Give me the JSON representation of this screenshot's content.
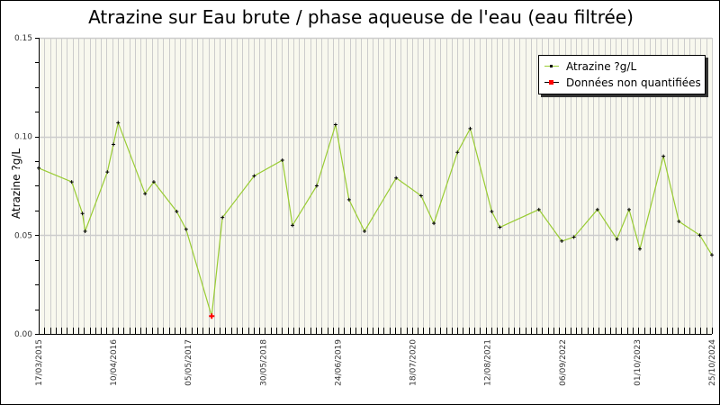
{
  "chart_data": {
    "type": "line",
    "title": "Atrazine sur Eau brute / phase aqueuse de l'eau (eau filtrée)",
    "xlabel": "",
    "ylabel": "Atrazine ?g/L",
    "ylim": [
      0,
      0.15
    ],
    "yticks": [
      "0.00",
      "0.05",
      "0.10",
      "0.15"
    ],
    "xtick_labels": [
      "17/03/2015",
      "10/04/2016",
      "05/05/2017",
      "30/05/2018",
      "24/06/2019",
      "18/07/2020",
      "12/08/2021",
      "06/09/2022",
      "01/10/2023",
      "25/10/2024"
    ],
    "grid": {
      "vertical": true,
      "horizontal": true
    },
    "legend_position": "top-right",
    "legend": [
      {
        "label": "Atrazine ?g/L",
        "line_color": "#99cc33",
        "marker_color": "#000000"
      },
      {
        "label": "Données non quantifiées",
        "line_color": "#000000",
        "marker_color": "#ff0000"
      }
    ],
    "series": [
      {
        "name": "Atrazine ?g/L",
        "color": "#99cc33",
        "points": [
          {
            "x": 0.0,
            "y": 0.084,
            "nq": false
          },
          {
            "x": 0.049,
            "y": 0.077,
            "nq": false
          },
          {
            "x": 0.065,
            "y": 0.061,
            "nq": false
          },
          {
            "x": 0.069,
            "y": 0.052,
            "nq": false
          },
          {
            "x": 0.102,
            "y": 0.082,
            "nq": false
          },
          {
            "x": 0.111,
            "y": 0.096,
            "nq": false
          },
          {
            "x": 0.118,
            "y": 0.107,
            "nq": false
          },
          {
            "x": 0.158,
            "y": 0.071,
            "nq": false
          },
          {
            "x": 0.171,
            "y": 0.077,
            "nq": false
          },
          {
            "x": 0.205,
            "y": 0.062,
            "nq": false
          },
          {
            "x": 0.219,
            "y": 0.053,
            "nq": false
          },
          {
            "x": 0.257,
            "y": 0.009,
            "nq": true
          },
          {
            "x": 0.273,
            "y": 0.059,
            "nq": false
          },
          {
            "x": 0.32,
            "y": 0.08,
            "nq": false
          },
          {
            "x": 0.362,
            "y": 0.088,
            "nq": false
          },
          {
            "x": 0.377,
            "y": 0.055,
            "nq": false
          },
          {
            "x": 0.413,
            "y": 0.075,
            "nq": false
          },
          {
            "x": 0.441,
            "y": 0.106,
            "nq": false
          },
          {
            "x": 0.461,
            "y": 0.068,
            "nq": false
          },
          {
            "x": 0.484,
            "y": 0.052,
            "nq": false
          },
          {
            "x": 0.531,
            "y": 0.079,
            "nq": false
          },
          {
            "x": 0.568,
            "y": 0.07,
            "nq": false
          },
          {
            "x": 0.587,
            "y": 0.056,
            "nq": false
          },
          {
            "x": 0.622,
            "y": 0.092,
            "nq": false
          },
          {
            "x": 0.641,
            "y": 0.104,
            "nq": false
          },
          {
            "x": 0.673,
            "y": 0.062,
            "nq": false
          },
          {
            "x": 0.685,
            "y": 0.054,
            "nq": false
          },
          {
            "x": 0.743,
            "y": 0.063,
            "nq": false
          },
          {
            "x": 0.777,
            "y": 0.047,
            "nq": false
          },
          {
            "x": 0.795,
            "y": 0.049,
            "nq": false
          },
          {
            "x": 0.83,
            "y": 0.063,
            "nq": false
          },
          {
            "x": 0.859,
            "y": 0.048,
            "nq": false
          },
          {
            "x": 0.877,
            "y": 0.063,
            "nq": false
          },
          {
            "x": 0.893,
            "y": 0.043,
            "nq": false
          },
          {
            "x": 0.928,
            "y": 0.09,
            "nq": false
          },
          {
            "x": 0.951,
            "y": 0.057,
            "nq": false
          },
          {
            "x": 0.982,
            "y": 0.05,
            "nq": false
          },
          {
            "x": 1.0,
            "y": 0.04,
            "nq": false
          }
        ]
      }
    ]
  }
}
